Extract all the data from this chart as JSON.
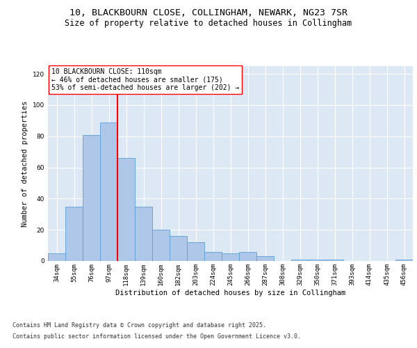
{
  "title_line1": "10, BLACKBOURN CLOSE, COLLINGHAM, NEWARK, NG23 7SR",
  "title_line2": "Size of property relative to detached houses in Collingham",
  "xlabel": "Distribution of detached houses by size in Collingham",
  "ylabel": "Number of detached properties",
  "categories": [
    "34sqm",
    "55sqm",
    "76sqm",
    "97sqm",
    "118sqm",
    "139sqm",
    "160sqm",
    "182sqm",
    "203sqm",
    "224sqm",
    "245sqm",
    "266sqm",
    "287sqm",
    "308sqm",
    "329sqm",
    "350sqm",
    "371sqm",
    "393sqm",
    "414sqm",
    "435sqm",
    "456sqm"
  ],
  "values": [
    5,
    35,
    81,
    89,
    66,
    35,
    20,
    16,
    12,
    6,
    5,
    6,
    3,
    0,
    1,
    1,
    1,
    0,
    0,
    0,
    1
  ],
  "bar_color": "#aec6e8",
  "bar_edge_color": "#5a9fd4",
  "background_color": "#dde8f5",
  "grid_color": "#ffffff",
  "vline_x_index": 4,
  "vline_color": "red",
  "annotation_text": "10 BLACKBOURN CLOSE: 110sqm\n← 46% of detached houses are smaller (175)\n53% of semi-detached houses are larger (202) →",
  "annotation_box_color": "white",
  "annotation_box_edge": "red",
  "ylim": [
    0,
    125
  ],
  "yticks": [
    0,
    20,
    40,
    60,
    80,
    100,
    120
  ],
  "footer_line1": "Contains HM Land Registry data © Crown copyright and database right 2025.",
  "footer_line2": "Contains public sector information licensed under the Open Government Licence v3.0.",
  "title_fontsize": 9.5,
  "subtitle_fontsize": 8.5,
  "axis_label_fontsize": 7.5,
  "tick_fontsize": 6.5,
  "annotation_fontsize": 7,
  "footer_fontsize": 6
}
